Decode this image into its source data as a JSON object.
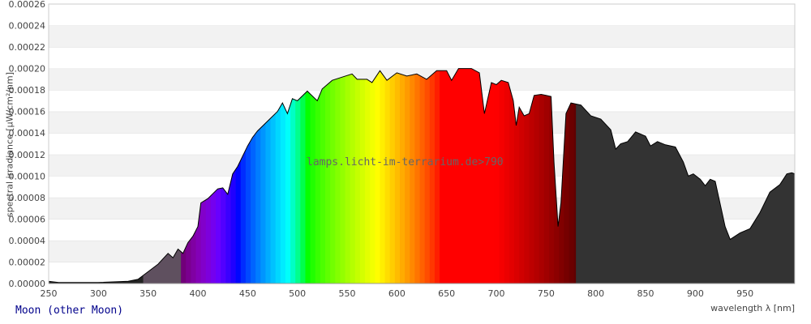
{
  "chart_data": {
    "type": "area",
    "xlabel": "wavelength λ [nm]",
    "ylabel": "spectral irradiance [µW/cm²/nm]",
    "xlim": [
      250,
      1000
    ],
    "ylim": [
      0,
      0.00026
    ],
    "xticks": [
      250,
      300,
      350,
      400,
      450,
      500,
      550,
      600,
      650,
      700,
      750,
      800,
      850,
      900,
      950
    ],
    "yticks": [
      "0.00000",
      "0.00002",
      "0.00004",
      "0.00006",
      "0.00008",
      "0.00010",
      "0.00012",
      "0.00014",
      "0.00016",
      "0.00018",
      "0.00020",
      "0.00022",
      "0.00024",
      "0.00026"
    ],
    "grid": "alternating horizontal bands",
    "fill": "visible-spectrum colors 380-780 nm, grey outside",
    "x": [
      250,
      260,
      300,
      330,
      340,
      350,
      360,
      370,
      375,
      380,
      385,
      390,
      395,
      400,
      403,
      410,
      420,
      425,
      430,
      435,
      440,
      450,
      455,
      460,
      470,
      480,
      485,
      490,
      495,
      500,
      510,
      520,
      525,
      535,
      545,
      555,
      560,
      570,
      575,
      583,
      590,
      600,
      610,
      620,
      630,
      640,
      650,
      655,
      662,
      675,
      683,
      688,
      695,
      700,
      705,
      712,
      717,
      720,
      723,
      728,
      733,
      738,
      745,
      750,
      755,
      758,
      762,
      765,
      770,
      775,
      785,
      795,
      805,
      815,
      820,
      825,
      832,
      840,
      850,
      855,
      862,
      870,
      880,
      888,
      893,
      898,
      905,
      910,
      915,
      920,
      930,
      935,
      945,
      955,
      965,
      975,
      985,
      992,
      997,
      1000
    ],
    "y": [
      2e-06,
      1e-06,
      1e-06,
      2e-06,
      4e-06,
      1.1e-05,
      1.8e-05,
      2.8e-05,
      2.4e-05,
      3.2e-05,
      2.8e-05,
      3.8e-05,
      4.4e-05,
      5.3e-05,
      7.5e-05,
      7.9e-05,
      8.8e-05,
      8.9e-05,
      8.3e-05,
      0.000102,
      0.000109,
      0.000128,
      0.000136,
      0.000142,
      0.000151,
      0.00016,
      0.000168,
      0.000158,
      0.000172,
      0.00017,
      0.000179,
      0.00017,
      0.000181,
      0.000189,
      0.000192,
      0.000195,
      0.00019,
      0.00019,
      0.000187,
      0.000198,
      0.000189,
      0.000196,
      0.000193,
      0.000195,
      0.00019,
      0.000198,
      0.000198,
      0.000189,
      0.0002,
      0.0002,
      0.000196,
      0.000158,
      0.000187,
      0.000185,
      0.000189,
      0.000187,
      0.00017,
      0.000147,
      0.000164,
      0.000156,
      0.000158,
      0.000175,
      0.000176,
      0.000175,
      0.000174,
      0.000113,
      5.3e-05,
      7.5e-05,
      0.000158,
      0.000168,
      0.000166,
      0.000156,
      0.000153,
      0.000143,
      0.000125,
      0.00013,
      0.000132,
      0.000141,
      0.000137,
      0.000128,
      0.000132,
      0.000129,
      0.000127,
      0.000113,
      0.0001,
      0.000102,
      9.7e-05,
      9.1e-05,
      9.7e-05,
      9.5e-05,
      5.3e-05,
      4.1e-05,
      4.7e-05,
      5.1e-05,
      6.6e-05,
      8.5e-05,
      9.2e-05,
      0.000102,
      0.000103,
      0.000102
    ]
  },
  "watermark": "lamps.licht-im-terrarium.de>790",
  "footer_title": "Moon (other Moon)",
  "colors": {
    "uv_fill": "#5f505f",
    "ir_fill": "#333333",
    "band": "#f2f2f2",
    "footer_title": "#00008b"
  }
}
